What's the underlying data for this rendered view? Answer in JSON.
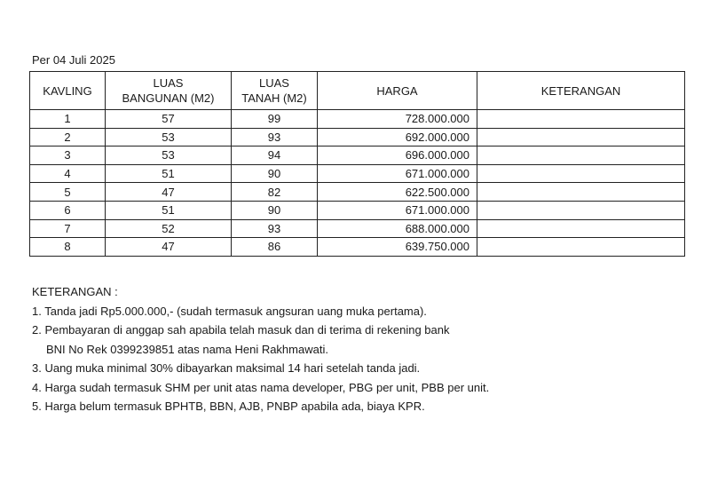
{
  "date_label": "Per 04 Juli 2025",
  "table": {
    "headers": [
      "KAVLING",
      "LUAS\nBANGUNAN (M2)",
      "LUAS\nTANAH (M2)",
      "HARGA",
      "KETERANGAN"
    ],
    "header_lines": [
      [
        "KAVLING"
      ],
      [
        "LUAS",
        "BANGUNAN (M2)"
      ],
      [
        "LUAS",
        "TANAH (M2)"
      ],
      [
        "HARGA"
      ],
      [
        "KETERANGAN"
      ]
    ],
    "rows": [
      [
        "1",
        "57",
        "99",
        "728.000.000",
        ""
      ],
      [
        "2",
        "53",
        "93",
        "692.000.000",
        ""
      ],
      [
        "3",
        "53",
        "94",
        "696.000.000",
        ""
      ],
      [
        "4",
        "51",
        "90",
        "671.000.000",
        ""
      ],
      [
        "5",
        "47",
        "82",
        "622.500.000",
        ""
      ],
      [
        "6",
        "51",
        "90",
        "671.000.000",
        ""
      ],
      [
        "7",
        "52",
        "93",
        "688.000.000",
        ""
      ],
      [
        "8",
        "47",
        "86",
        "639.750.000",
        ""
      ]
    ]
  },
  "notes": {
    "title": "KETERANGAN :",
    "items": [
      [
        "1. Tanda jadi Rp5.000.000,- (sudah termasuk angsuran uang muka pertama)."
      ],
      [
        "2. Pembayaran di anggap sah apabila telah masuk dan di terima di rekening bank",
        "BNI No Rek 0399239851 atas nama Heni Rakhmawati."
      ],
      [
        "3. Uang muka minimal 30% dibayarkan maksimal 14 hari setelah tanda jadi."
      ],
      [
        "4. Harga sudah termasuk SHM per unit atas nama developer, PBG per unit, PBB per unit."
      ],
      [
        "5. Harga belum termasuk BPHTB, BBN, AJB, PNBP apabila ada, biaya KPR."
      ]
    ]
  }
}
